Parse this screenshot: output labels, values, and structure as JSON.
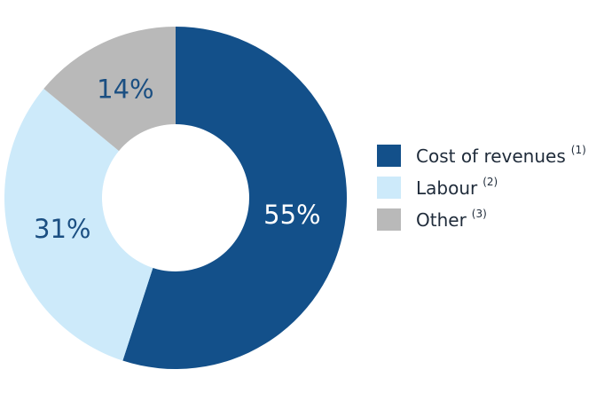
{
  "chart_data": {
    "type": "donut",
    "categories": [
      "Cost of revenues",
      "Labour",
      "Other"
    ],
    "notes": [
      "(1)",
      "(2)",
      "(3)"
    ],
    "values": [
      55,
      31,
      14
    ],
    "value_labels": [
      "55%",
      "31%",
      "14%"
    ],
    "colors": [
      "#13508a",
      "#cdeafa",
      "#b9b9b9"
    ],
    "legend": "right"
  }
}
